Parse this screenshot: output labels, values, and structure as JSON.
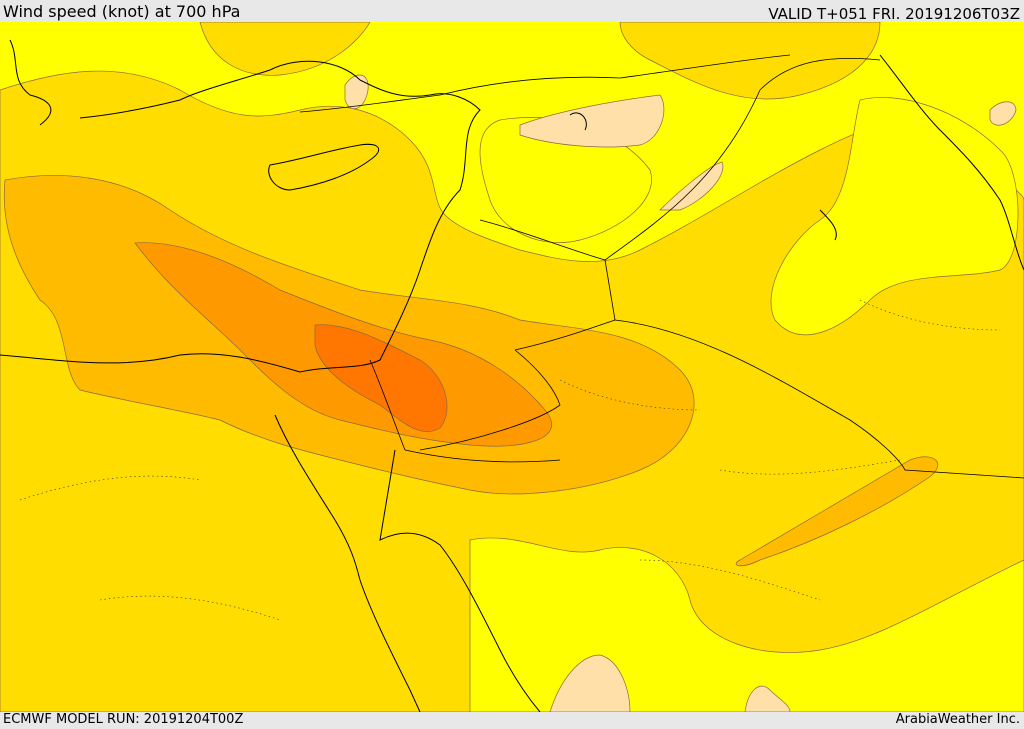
{
  "header": {
    "title": "Wind speed (knot) at 700 hPa",
    "valid": "VALID T+051 FRI. 20191206T03Z"
  },
  "footer": {
    "model_run": "ECMWF MODEL RUN: 20191204T00Z",
    "brand": "ArabiaWeather Inc."
  },
  "map": {
    "colors": {
      "level_1": "#ffff00",
      "level_2": "#ffdd00",
      "level_3": "#ffbb00",
      "level_4": "#ff9900",
      "level_5": "#ff7700",
      "calm": "#ffe0a8",
      "coastline": "#000000",
      "border": "#000000"
    }
  }
}
